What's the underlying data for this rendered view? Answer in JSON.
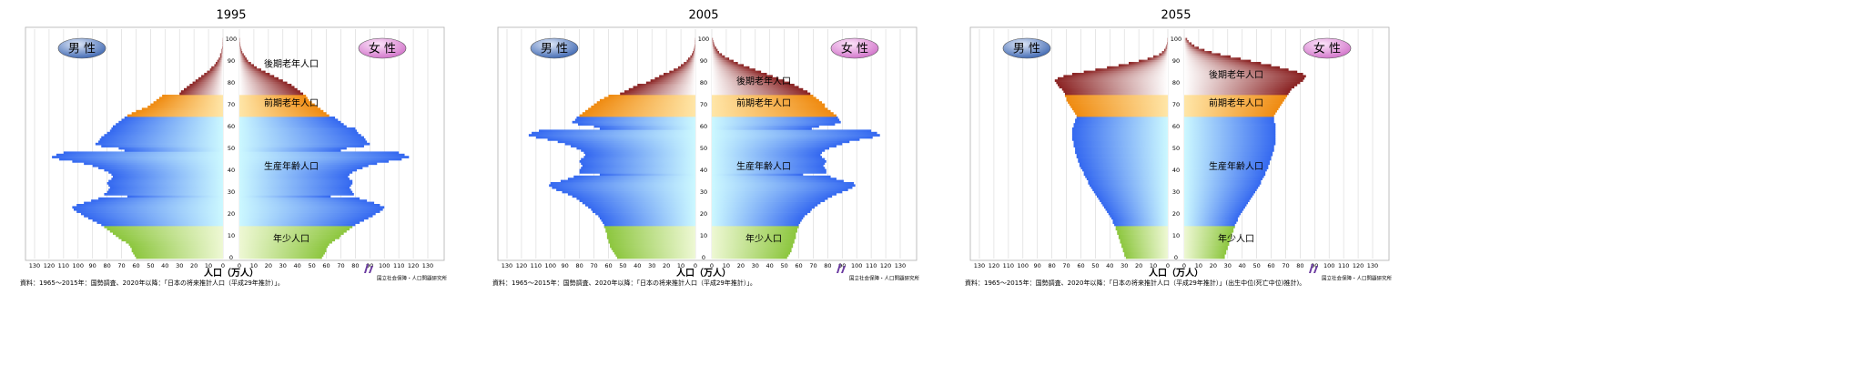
{
  "chart_data": [
    {
      "type": "pyramid",
      "title": "1995",
      "x_label": "人口（万人）",
      "source": "資料：1965～2015年：国勢調査、2020年以降：「日本の将来推計人口（平成29年推計）」。",
      "logo": "国立社会保障・人口問題研究所",
      "xlim": [
        0,
        130
      ],
      "xticks": [
        0,
        10,
        20,
        30,
        40,
        50,
        60,
        70,
        80,
        90,
        100,
        110,
        120,
        130
      ],
      "grid": true,
      "categories": [
        0,
        null,
        null,
        null,
        null,
        null,
        null,
        null,
        null,
        null,
        10,
        null,
        null,
        null,
        null,
        null,
        null,
        null,
        null,
        null,
        20,
        null,
        null,
        null,
        null,
        null,
        null,
        null,
        null,
        null,
        30,
        null,
        null,
        null,
        null,
        null,
        null,
        null,
        null,
        null,
        40,
        null,
        null,
        null,
        null,
        null,
        null,
        null,
        null,
        null,
        50,
        null,
        null,
        null,
        null,
        null,
        null,
        null,
        null,
        null,
        60,
        null,
        null,
        null,
        null,
        null,
        null,
        null,
        null,
        null,
        70,
        null,
        null,
        null,
        null,
        null,
        null,
        null,
        null,
        null,
        80,
        null,
        null,
        null,
        null,
        null,
        null,
        null,
        null,
        null,
        90,
        null,
        null,
        null,
        null,
        null,
        null,
        null,
        null,
        null,
        100
      ],
      "age_groups": [
        {
          "name": "年少人口",
          "ages": [
            0,
            14
          ],
          "color": "#8cc63e",
          "fade": "#eef8d4"
        },
        {
          "name": "生産年齢人口",
          "ages": [
            15,
            64
          ],
          "color": "#3468f0",
          "fade": "#ccf8ff"
        },
        {
          "name": "前期老年人口",
          "ages": [
            65,
            74
          ],
          "color": "#ef8a10",
          "fade": "#ffe6a8"
        },
        {
          "name": "後期老年人口",
          "ages": [
            75,
            100
          ],
          "color": "#8a2222",
          "fade": "#ffffff"
        }
      ],
      "series": [
        {
          "name": "男 性",
          "color": "#3a64b0",
          "values": [
            60,
            61,
            62,
            63,
            63,
            64,
            65,
            67,
            70,
            72,
            74,
            76,
            78,
            80,
            82,
            84,
            87,
            90,
            93,
            96,
            98,
            101,
            103,
            104,
            101,
            96,
            91,
            86,
            66,
            82,
            80,
            79,
            78,
            79,
            80,
            79,
            77,
            76,
            77,
            79,
            82,
            86,
            90,
            96,
            104,
            113,
            118,
            115,
            110,
            68,
            72,
            84,
            88,
            86,
            85,
            84,
            82,
            80,
            78,
            77,
            76,
            74,
            72,
            70,
            68,
            66,
            63,
            60,
            56,
            52,
            50,
            48,
            46,
            44,
            42,
            30,
            29,
            27,
            25,
            23,
            21,
            19,
            17,
            15,
            13,
            11,
            9,
            8,
            6,
            5,
            4,
            3,
            2,
            2,
            1,
            1,
            0.5,
            0.3,
            0.2,
            0.1,
            0.1
          ]
        },
        {
          "name": "女 性",
          "color": "#d070c8",
          "values": [
            57,
            58,
            59,
            60,
            60,
            61,
            62,
            64,
            66,
            69,
            70,
            72,
            74,
            76,
            78,
            80,
            83,
            86,
            89,
            92,
            94,
            97,
            99,
            100,
            97,
            93,
            88,
            83,
            63,
            79,
            78,
            77,
            76,
            77,
            78,
            78,
            76,
            75,
            76,
            78,
            81,
            85,
            89,
            95,
            103,
            112,
            117,
            114,
            110,
            70,
            74,
            86,
            90,
            88,
            87,
            86,
            84,
            82,
            81,
            80,
            74,
            72,
            70,
            68,
            66,
            62,
            60,
            58,
            56,
            54,
            52,
            50,
            48,
            47,
            46,
            44,
            42,
            40,
            38,
            36,
            33,
            30,
            27,
            24,
            21,
            18,
            15,
            12,
            10,
            8,
            6,
            5,
            4,
            3,
            2,
            1.5,
            1,
            0.7,
            0.5,
            0.3,
            0.2
          ]
        }
      ]
    },
    {
      "type": "pyramid",
      "title": "2005",
      "x_label": "人口（万人）",
      "source": "資料：1965～2015年：国勢調査、2020年以降：「日本の将来推計人口（平成29年推計）」。",
      "logo": "国立社会保障・人口問題研究所",
      "xlim": [
        0,
        130
      ],
      "xticks": [
        0,
        10,
        20,
        30,
        40,
        50,
        60,
        70,
        80,
        90,
        100,
        110,
        120,
        130
      ],
      "grid": true,
      "categories": [
        0,
        null,
        null,
        null,
        null,
        null,
        null,
        null,
        null,
        null,
        10,
        null,
        null,
        null,
        null,
        null,
        null,
        null,
        null,
        null,
        20,
        null,
        null,
        null,
        null,
        null,
        null,
        null,
        null,
        null,
        30,
        null,
        null,
        null,
        null,
        null,
        null,
        null,
        null,
        null,
        40,
        null,
        null,
        null,
        null,
        null,
        null,
        null,
        null,
        null,
        50,
        null,
        null,
        null,
        null,
        null,
        null,
        null,
        null,
        null,
        60,
        null,
        null,
        null,
        null,
        null,
        null,
        null,
        null,
        null,
        70,
        null,
        null,
        null,
        null,
        null,
        null,
        null,
        null,
        null,
        80,
        null,
        null,
        null,
        null,
        null,
        null,
        null,
        null,
        null,
        90,
        null,
        null,
        null,
        null,
        null,
        null,
        null,
        null,
        null,
        100
      ],
      "age_groups": [
        {
          "name": "年少人口",
          "ages": [
            0,
            14
          ],
          "color": "#8cc63e",
          "fade": "#eef8d4"
        },
        {
          "name": "生産年齢人口",
          "ages": [
            15,
            64
          ],
          "color": "#3468f0",
          "fade": "#ccf8ff"
        },
        {
          "name": "前期老年人口",
          "ages": [
            65,
            74
          ],
          "color": "#ef8a10",
          "fade": "#ffe6a8"
        },
        {
          "name": "後期老年人口",
          "ages": [
            75,
            100
          ],
          "color": "#8a2222",
          "fade": "#ffffff"
        }
      ],
      "series": [
        {
          "name": "男 性",
          "color": "#3a64b0",
          "values": [
            54,
            55,
            56,
            57,
            58,
            59,
            59,
            60,
            60,
            61,
            61,
            61,
            62,
            62,
            63,
            63,
            64,
            65,
            66,
            67,
            69,
            71,
            72,
            74,
            76,
            78,
            80,
            82,
            85,
            88,
            92,
            96,
            99,
            101,
            100,
            93,
            88,
            84,
            66,
            80,
            80,
            79,
            78,
            79,
            80,
            79,
            77,
            76,
            77,
            79,
            82,
            86,
            90,
            95,
            102,
            110,
            115,
            113,
            108,
            66,
            70,
            81,
            85,
            83,
            82,
            80,
            78,
            76,
            74,
            72,
            70,
            68,
            66,
            63,
            60,
            52,
            49,
            46,
            43,
            40,
            34,
            31,
            28,
            25,
            22,
            18,
            15,
            12,
            10,
            8,
            6,
            5,
            3.5,
            2.5,
            1.8,
            1.2,
            0.8,
            0.5,
            0.3,
            0.2,
            0.1
          ]
        },
        {
          "name": "女 性",
          "color": "#d070c8",
          "values": [
            52,
            53,
            54,
            55,
            55,
            56,
            56,
            57,
            57,
            58,
            58,
            58,
            59,
            59,
            60,
            60,
            61,
            62,
            63,
            64,
            66,
            68,
            69,
            71,
            73,
            75,
            78,
            80,
            83,
            86,
            90,
            94,
            97,
            99,
            98,
            91,
            86,
            82,
            63,
            79,
            79,
            78,
            77,
            78,
            79,
            78,
            76,
            75,
            76,
            78,
            81,
            86,
            90,
            95,
            102,
            111,
            116,
            114,
            110,
            69,
            74,
            85,
            89,
            88,
            87,
            86,
            84,
            82,
            80,
            78,
            78,
            76,
            74,
            72,
            70,
            68,
            66,
            63,
            60,
            57,
            54,
            50,
            46,
            42,
            38,
            34,
            30,
            26,
            22,
            18,
            15,
            12,
            9,
            7,
            5,
            4,
            3,
            2,
            1.5,
            1,
            0.7
          ]
        }
      ]
    },
    {
      "type": "pyramid",
      "title": "2055",
      "x_label": "人口（万人）",
      "source": "資料：1965～2015年：国勢調査、2020年以降：「日本の将来推計人口（平成29年推計）」(出生中位(死亡中位)推計)。",
      "logo": "国立社会保障・人口問題研究所",
      "xlim": [
        0,
        130
      ],
      "xticks": [
        0,
        10,
        20,
        30,
        40,
        50,
        60,
        70,
        80,
        90,
        100,
        110,
        120,
        130
      ],
      "grid": true,
      "categories": [
        0,
        null,
        null,
        null,
        null,
        null,
        null,
        null,
        null,
        null,
        10,
        null,
        null,
        null,
        null,
        null,
        null,
        null,
        null,
        null,
        20,
        null,
        null,
        null,
        null,
        null,
        null,
        null,
        null,
        null,
        30,
        null,
        null,
        null,
        null,
        null,
        null,
        null,
        null,
        null,
        40,
        null,
        null,
        null,
        null,
        null,
        null,
        null,
        null,
        null,
        50,
        null,
        null,
        null,
        null,
        null,
        null,
        null,
        null,
        null,
        60,
        null,
        null,
        null,
        null,
        null,
        null,
        null,
        null,
        null,
        70,
        null,
        null,
        null,
        null,
        null,
        null,
        null,
        null,
        null,
        80,
        null,
        null,
        null,
        null,
        null,
        null,
        null,
        null,
        null,
        90,
        null,
        null,
        null,
        null,
        null,
        null,
        null,
        null,
        null,
        100
      ],
      "age_groups": [
        {
          "name": "年少人口",
          "ages": [
            0,
            14
          ],
          "color": "#8cc63e",
          "fade": "#eef8d4"
        },
        {
          "name": "生産年齢人口",
          "ages": [
            15,
            64
          ],
          "color": "#3468f0",
          "fade": "#ccf8ff"
        },
        {
          "name": "前期老年人口",
          "ages": [
            65,
            74
          ],
          "color": "#ef8a10",
          "fade": "#ffe6a8"
        },
        {
          "name": "後期老年人口",
          "ages": [
            75,
            100
          ],
          "color": "#8a2222",
          "fade": "#ffffff"
        }
      ],
      "series": [
        {
          "name": "男 性",
          "color": "#3a64b0",
          "values": [
            29,
            30,
            30,
            31,
            31,
            32,
            32,
            33,
            33,
            34,
            34,
            35,
            35,
            36,
            36,
            37,
            38,
            38,
            39,
            40,
            41,
            42,
            43,
            44,
            45,
            46,
            47,
            48,
            49,
            50,
            51,
            52,
            53,
            54,
            55,
            55,
            56,
            57,
            58,
            58,
            59,
            60,
            61,
            61,
            62,
            62,
            63,
            63,
            64,
            64,
            64,
            65,
            65,
            65,
            66,
            66,
            66,
            66,
            66,
            66,
            65,
            65,
            64,
            64,
            63,
            63,
            64,
            65,
            66,
            67,
            68,
            69,
            70,
            70,
            71,
            71,
            72,
            73,
            75,
            76,
            77,
            78,
            76,
            72,
            66,
            58,
            50,
            42,
            34,
            27,
            20,
            14,
            10,
            6,
            4,
            2.5,
            1.5,
            1,
            0.6,
            0.3,
            0.2
          ]
        },
        {
          "name": "女 性",
          "color": "#d070c8",
          "values": [
            28,
            28,
            29,
            29,
            30,
            30,
            31,
            31,
            32,
            32,
            33,
            33,
            34,
            34,
            35,
            35,
            36,
            37,
            37,
            38,
            39,
            40,
            41,
            42,
            43,
            44,
            45,
            46,
            47,
            48,
            49,
            50,
            51,
            52,
            53,
            53,
            54,
            55,
            56,
            56,
            57,
            58,
            58,
            59,
            59,
            60,
            60,
            61,
            61,
            62,
            62,
            62,
            63,
            63,
            63,
            63,
            63,
            63,
            63,
            63,
            63,
            63,
            62,
            62,
            62,
            62,
            63,
            64,
            65,
            66,
            67,
            68,
            69,
            70,
            71,
            72,
            73,
            74,
            76,
            78,
            80,
            82,
            83,
            84,
            82,
            78,
            72,
            66,
            60,
            53,
            46,
            39,
            32,
            25,
            19,
            14,
            10,
            7,
            5,
            3,
            2
          ]
        }
      ]
    }
  ]
}
